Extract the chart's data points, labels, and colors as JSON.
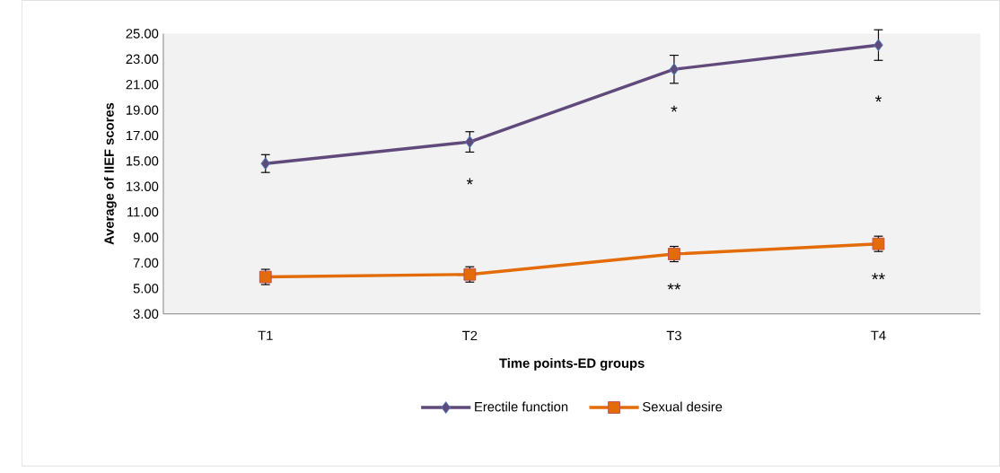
{
  "chart_data": {
    "type": "line",
    "xlabel": "Time points-ED groups",
    "ylabel": "Average of IIEF scores",
    "categories": [
      "T1",
      "T2",
      "T3",
      "T4"
    ],
    "series": [
      {
        "name": "Erectile function",
        "color": "#604a7b",
        "marker": "diamond",
        "values": [
          14.8,
          16.5,
          22.2,
          24.1
        ],
        "errors": [
          0.7,
          0.8,
          1.1,
          1.2
        ]
      },
      {
        "name": "Sexual desire",
        "color": "#e36c09",
        "marker": "square",
        "values": [
          5.9,
          6.1,
          7.7,
          8.5
        ],
        "errors": [
          0.6,
          0.6,
          0.6,
          0.6
        ]
      }
    ],
    "ylim": [
      3,
      25
    ],
    "yticks": [
      {
        "value": 3,
        "label": "3.00"
      },
      {
        "value": 5,
        "label": "5.00"
      },
      {
        "value": 7,
        "label": "7.00"
      },
      {
        "value": 9,
        "label": "9.00"
      },
      {
        "value": 11,
        "label": "11.00"
      },
      {
        "value": 13,
        "label": "13.00"
      },
      {
        "value": 15,
        "label": "15.00"
      },
      {
        "value": 17,
        "label": "17.00"
      },
      {
        "value": 19,
        "label": "19.00"
      },
      {
        "value": 21,
        "label": "21.00"
      },
      {
        "value": 23,
        "label": "23.00"
      },
      {
        "value": 25,
        "label": "25.00"
      }
    ],
    "annotations": [
      "*",
      "*",
      "*",
      "**",
      "**"
    ],
    "legend": "bottom",
    "grid": false
  }
}
